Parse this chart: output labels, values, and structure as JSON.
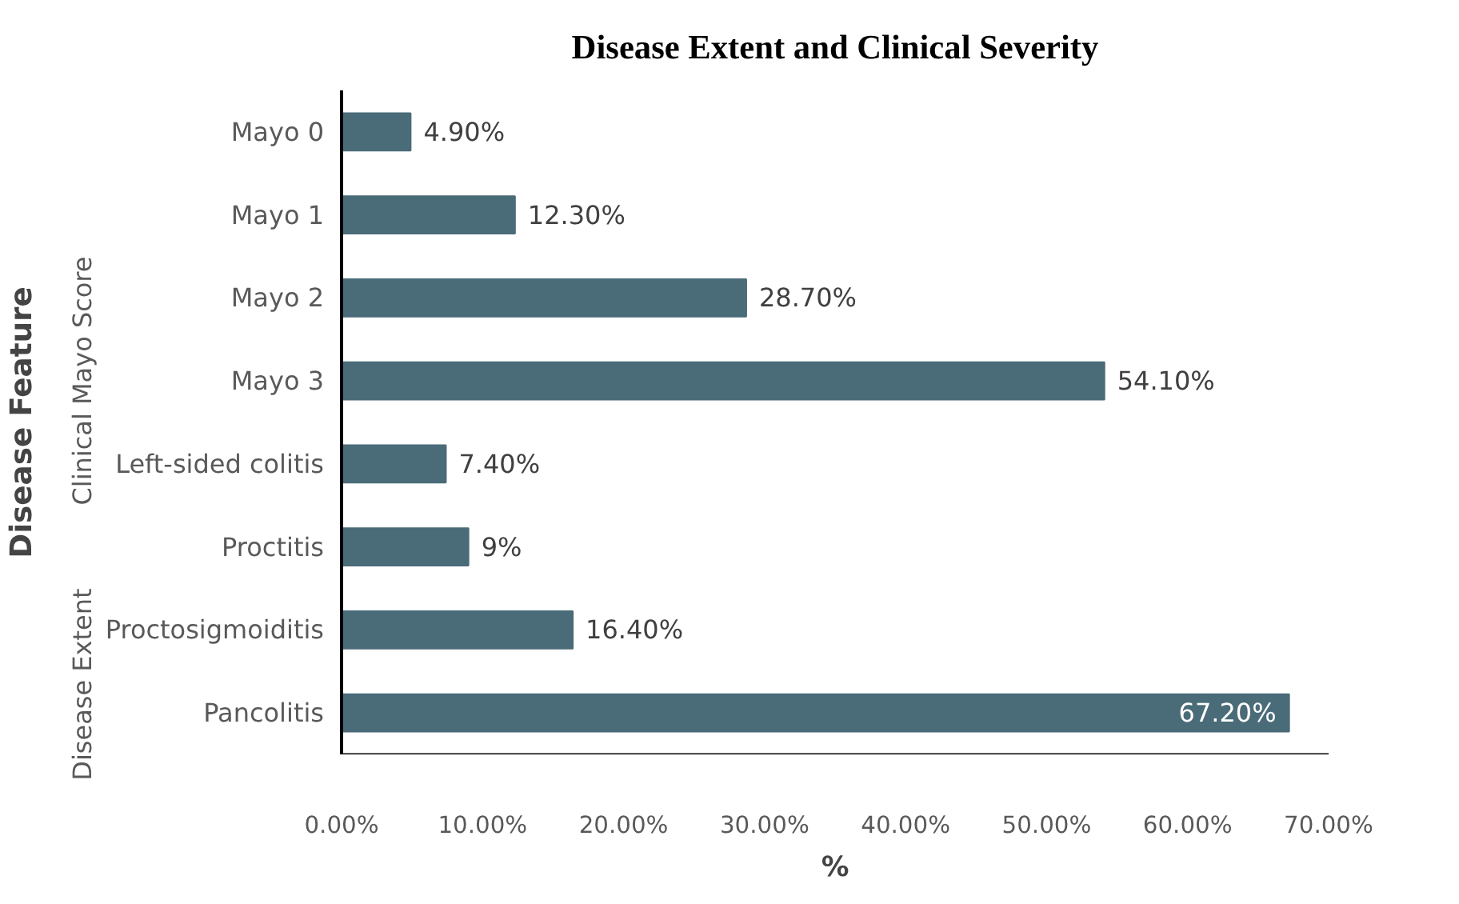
{
  "chart_data": {
    "type": "bar",
    "orientation": "horizontal",
    "title": "Disease Extent and Clinical Severity",
    "xlabel": "%",
    "ylabel": "Disease Feature",
    "categories": [
      "Mayo 0",
      "Mayo 1",
      "Mayo 2",
      "Mayo 3",
      "Left-sided colitis",
      "Proctitis",
      "Proctosigmoiditis",
      "Pancolitis"
    ],
    "annotations": [
      "Clinical Mayo Score",
      "Disease Extent"
    ],
    "series": [
      {
        "color": "#4a6b78",
        "values": [
          4.9,
          12.3,
          28.7,
          54.1,
          7.4,
          9,
          16.4,
          67.2
        ],
        "value_labels": [
          "4.90%",
          "12.30%",
          "28.70%",
          "54.10%",
          "7.40%",
          "9%",
          "16.40%",
          "67.20%"
        ]
      }
    ],
    "xlim": [
      0,
      70
    ],
    "xticks": [
      {
        "value": 0,
        "label": "0.00%"
      },
      {
        "value": 10,
        "label": "10.00%"
      },
      {
        "value": 20,
        "label": "20.00%"
      },
      {
        "value": 30,
        "label": "30.00%"
      },
      {
        "value": 40,
        "label": "40.00%"
      },
      {
        "value": 50,
        "label": "50.00%"
      },
      {
        "value": 60,
        "label": "60.00%"
      },
      {
        "value": 70,
        "label": "70.00%"
      }
    ],
    "grid": false
  }
}
